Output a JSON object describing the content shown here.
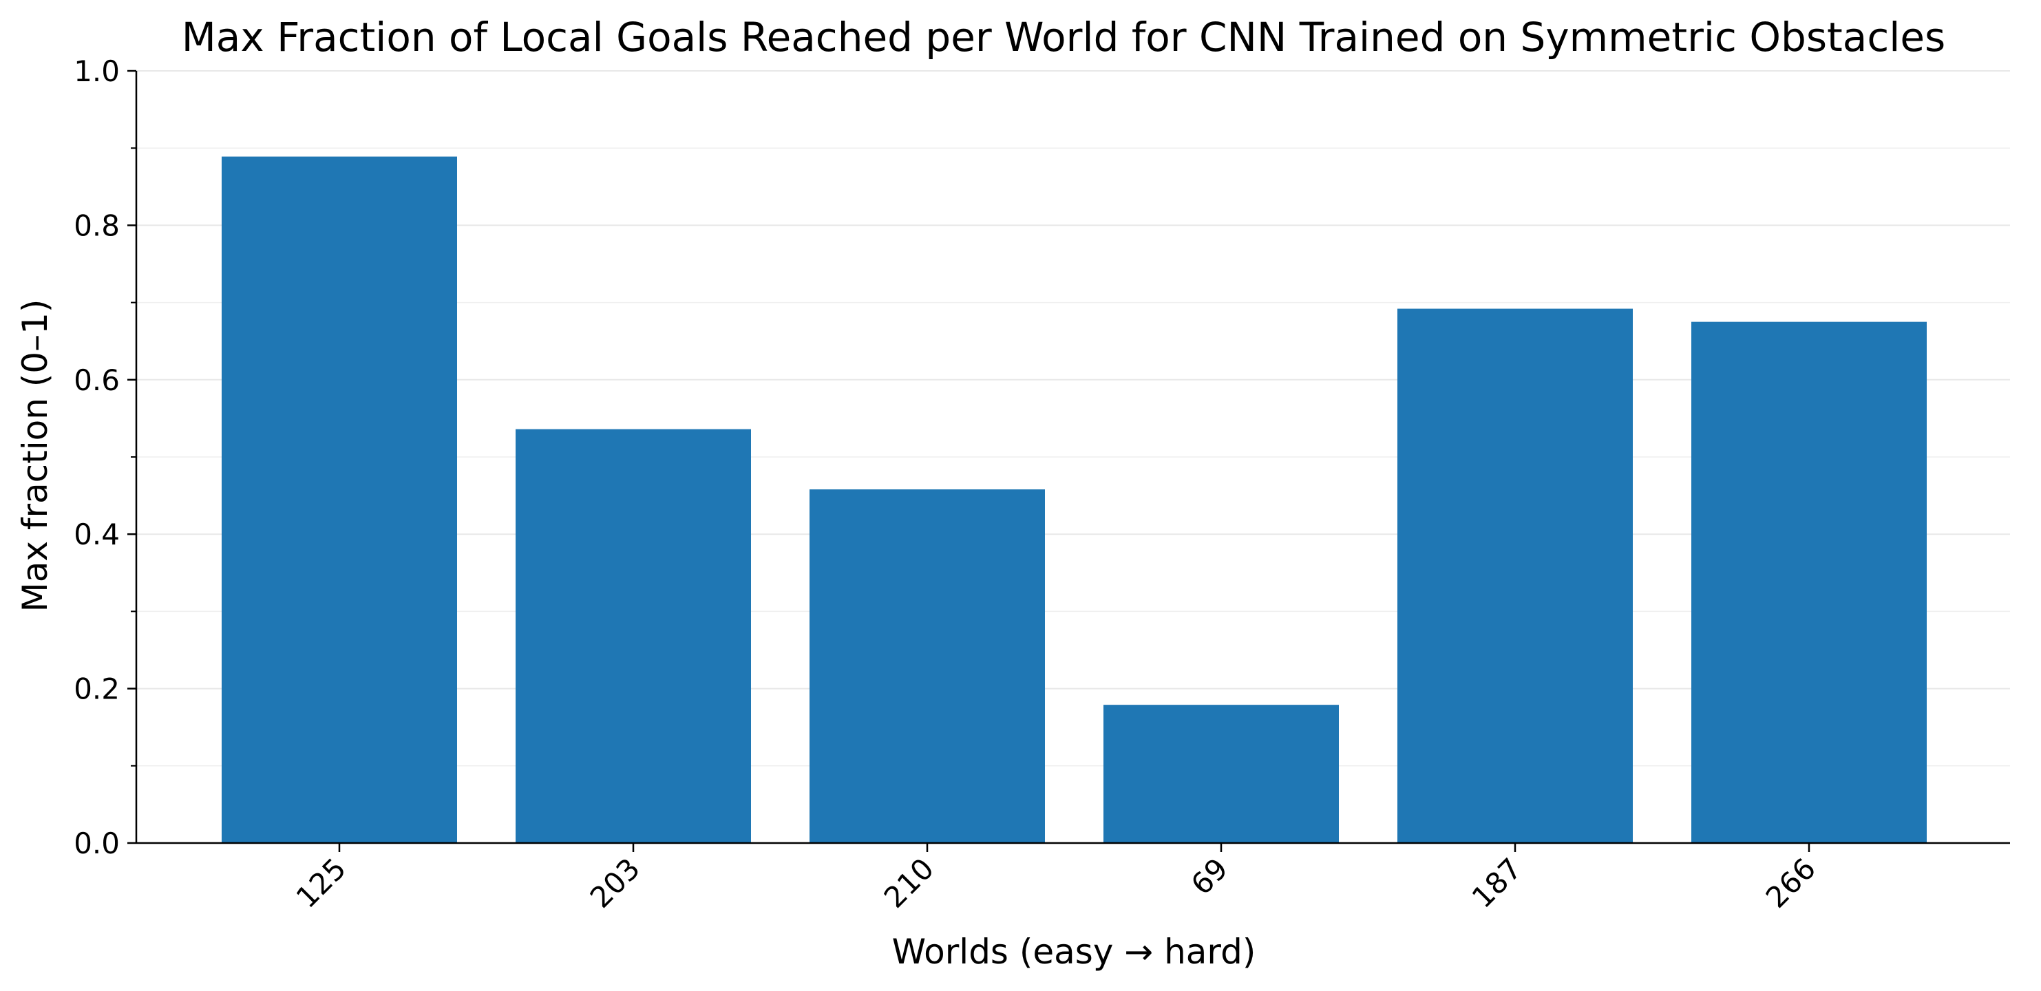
{
  "chart_data": {
    "type": "bar",
    "title": "Max Fraction of Local Goals Reached per World for CNN Trained on Symmetric Obstacles",
    "xlabel": "Worlds (easy → hard)",
    "ylabel": "Max fraction (0–1)",
    "categories": [
      "125",
      "203",
      "210",
      "69",
      "187",
      "266"
    ],
    "values": [
      0.889,
      0.536,
      0.458,
      0.179,
      0.692,
      0.675
    ],
    "ylim": [
      0.0,
      1.0
    ],
    "yticks": [
      0.0,
      0.2,
      0.4,
      0.6,
      0.8,
      1.0
    ],
    "ytick_labels": [
      "0.0",
      "0.2",
      "0.4",
      "0.6",
      "0.8",
      "1.0"
    ],
    "y_minor_step": 0.1,
    "grid": true,
    "grid_axis": "y",
    "x_tick_rotation": "45° (right-aligned)",
    "colors": {
      "bar": "#1f77b4",
      "grid": "#e8e8e8",
      "axis": "#000000",
      "text": "#000000"
    }
  }
}
